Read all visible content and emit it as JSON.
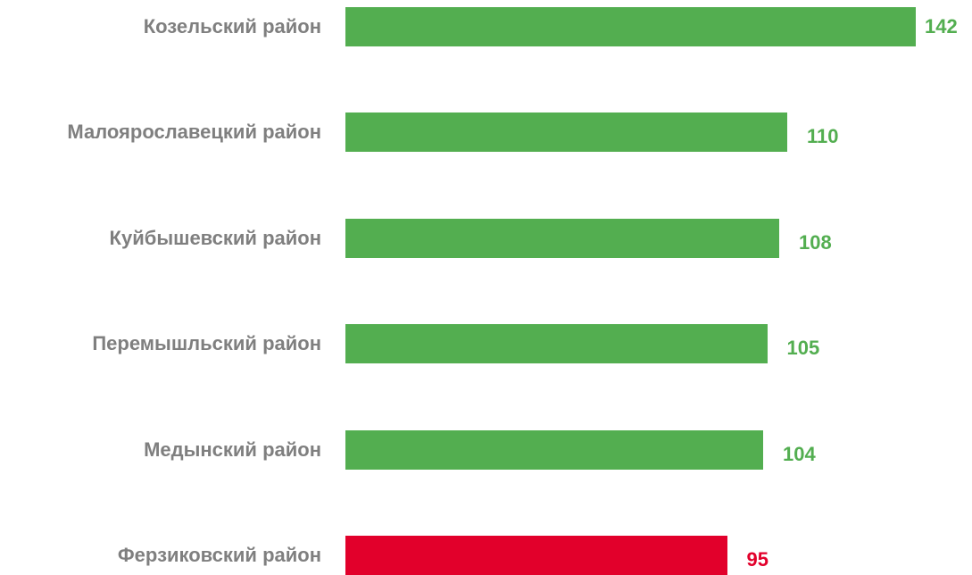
{
  "chart_data": {
    "type": "bar",
    "orientation": "horizontal",
    "categories": [
      "Козельский район",
      "Малоярославецкий район",
      "Куйбышевский район",
      "Перемышльский район",
      "Медынский район",
      "Ферзиковский район"
    ],
    "values": [
      142,
      110,
      108,
      105,
      104,
      95
    ],
    "colors": [
      "#53ae50",
      "#53ae50",
      "#53ae50",
      "#53ae50",
      "#53ae50",
      "#e2002b"
    ]
  }
}
